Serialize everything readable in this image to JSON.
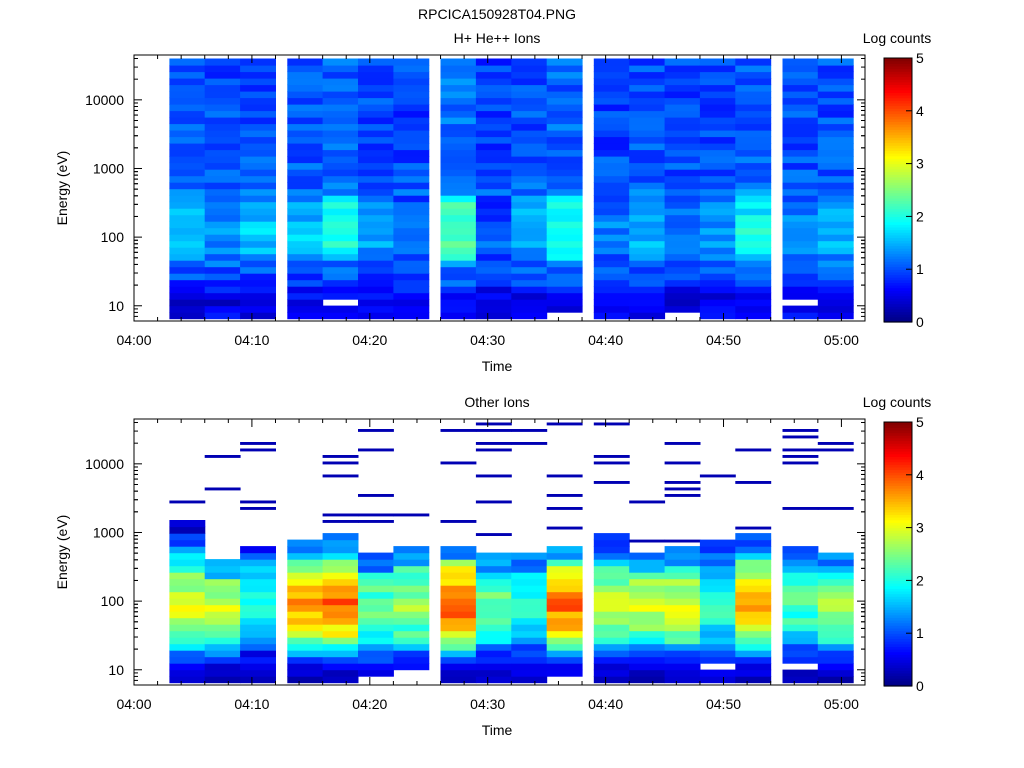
{
  "figure_title": "RPCICA150928T04.PNG",
  "colorbar": {
    "title": "Log counts",
    "ticks": [
      "0",
      "1",
      "2",
      "3",
      "4",
      "5"
    ],
    "range": [
      0,
      5
    ],
    "colormap": "jet"
  },
  "chart_data": [
    {
      "type": "heatmap",
      "title": "H+ He++ Ions",
      "xlabel": "Time",
      "ylabel": "Energy (eV)",
      "xticks": [
        "04:00",
        "04:10",
        "04:20",
        "04:30",
        "04:40",
        "04:50",
        "05:00"
      ],
      "xlim": [
        "04:00",
        "05:02"
      ],
      "yticks": [
        "10",
        "100",
        "1000",
        "10000"
      ],
      "ylim": [
        6,
        45000
      ],
      "yscale": "log",
      "time_bins": [
        "04:03",
        "04:06",
        "04:09",
        "04:13",
        "04:16",
        "04:19",
        "04:22",
        "04:26",
        "04:29",
        "04:32",
        "04:35",
        "04:39",
        "04:42",
        "04:45",
        "04:48",
        "04:51",
        "04:55",
        "04:58"
      ],
      "energy_profile": [
        {
          "energy_ev": 7,
          "log_counts": 0.6
        },
        {
          "energy_ev": 12,
          "log_counts": 0.5
        },
        {
          "energy_ev": 22,
          "log_counts": 0.9
        },
        {
          "energy_ev": 40,
          "log_counts": 1.1
        },
        {
          "energy_ev": 70,
          "log_counts": 1.5
        },
        {
          "energy_ev": 130,
          "log_counts": 1.6
        },
        {
          "energy_ev": 250,
          "log_counts": 1.4
        },
        {
          "energy_ev": 600,
          "log_counts": 1.1
        },
        {
          "energy_ev": 2000,
          "log_counts": 1.0
        },
        {
          "energy_ev": 8000,
          "log_counts": 1.0
        },
        {
          "energy_ev": 40000,
          "log_counts": 1.0
        }
      ],
      "bin_modulation": [
        0.0,
        -0.1,
        0.0,
        0.0,
        0.3,
        -0.1,
        -0.2,
        0.5,
        -0.3,
        0.0,
        0.3,
        -0.2,
        0.0,
        -0.2,
        -0.1,
        0.2,
        -0.1,
        0.0
      ]
    },
    {
      "type": "heatmap",
      "title": "Other Ions",
      "xlabel": "Time",
      "ylabel": "Energy (eV)",
      "xticks": [
        "04:00",
        "04:10",
        "04:20",
        "04:30",
        "04:40",
        "04:50",
        "05:00"
      ],
      "xlim": [
        "04:00",
        "05:02"
      ],
      "yticks": [
        "10",
        "100",
        "1000",
        "10000"
      ],
      "ylim": [
        6,
        45000
      ],
      "yscale": "log",
      "time_bins": [
        "04:03",
        "04:06",
        "04:09",
        "04:13",
        "04:16",
        "04:19",
        "04:22",
        "04:26",
        "04:29",
        "04:32",
        "04:35",
        "04:39",
        "04:42",
        "04:45",
        "04:48",
        "04:51",
        "04:55",
        "04:58"
      ],
      "energy_profile": [
        {
          "energy_ev": 7,
          "log_counts": 0.3
        },
        {
          "energy_ev": 12,
          "log_counts": 0.6
        },
        {
          "energy_ev": 20,
          "log_counts": 1.6
        },
        {
          "energy_ev": 30,
          "log_counts": 2.7
        },
        {
          "energy_ev": 50,
          "log_counts": 3.1
        },
        {
          "energy_ev": 90,
          "log_counts": 3.5
        },
        {
          "energy_ev": 160,
          "log_counts": 3.2
        },
        {
          "energy_ev": 300,
          "log_counts": 2.6
        },
        {
          "energy_ev": 600,
          "log_counts": 1.3
        },
        {
          "energy_ev": 1200,
          "log_counts": 0.5
        }
      ],
      "bin_peak": [
        3.0,
        2.9,
        2.0,
        3.6,
        3.9,
        2.4,
        2.7,
        4.0,
        2.4,
        2.2,
        3.9,
        2.8,
        2.9,
        3.0,
        2.1,
        3.5,
        2.3,
        2.7
      ],
      "bin_top_ev": [
        1600,
        400,
        600,
        800,
        900,
        500,
        600,
        700,
        500,
        500,
        700,
        1000,
        500,
        600,
        800,
        900,
        600,
        500
      ],
      "sparse_lines_log_counts": 0.25
    }
  ]
}
